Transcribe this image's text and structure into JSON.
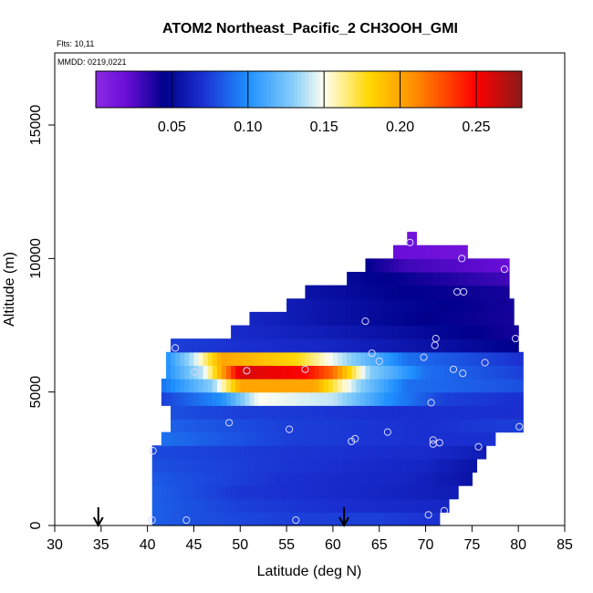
{
  "chart_data": {
    "type": "heatmap",
    "title": "ATOM2 Northeast_Pacific_2 CH3OOH_GMI",
    "subtitle_lines": [
      "Flts: 10,11",
      "MMDD: 0219,0221"
    ],
    "xlabel": "Latitude (deg N)",
    "ylabel": "Altitude (m)",
    "xlim": [
      30,
      85
    ],
    "ylim": [
      0,
      17500
    ],
    "x_ticks": [
      30,
      35,
      40,
      45,
      50,
      55,
      60,
      65,
      70,
      75,
      80,
      85
    ],
    "y_ticks": [
      0,
      5000,
      10000,
      15000
    ],
    "colorbar": {
      "range": [
        0.0,
        0.28
      ],
      "ticks": [
        0.05,
        0.1,
        0.15,
        0.2,
        0.25
      ],
      "tick_labels": [
        "0.05",
        "0.10",
        "0.15",
        "0.20",
        "0.25"
      ],
      "placement": "top-inside"
    },
    "colormap": [
      [
        0.0,
        "#8a2be2"
      ],
      [
        0.02,
        "#6a0dd8"
      ],
      [
        0.045,
        "#00008b"
      ],
      [
        0.07,
        "#1a2fd0"
      ],
      [
        0.1,
        "#1e90ff"
      ],
      [
        0.13,
        "#87cefa"
      ],
      [
        0.15,
        "#fffff0"
      ],
      [
        0.18,
        "#ffd700"
      ],
      [
        0.21,
        "#ff8c00"
      ],
      [
        0.25,
        "#ff0000"
      ],
      [
        0.28,
        "#8b1a1a"
      ]
    ],
    "field_rows": [
      {
        "alt": [
          0,
          500
        ],
        "lat": [
          40.5,
          71.5
        ],
        "vals": [
          [
            40.5,
            0.085
          ],
          [
            45,
            0.08
          ],
          [
            55,
            0.075
          ],
          [
            65,
            0.075
          ],
          [
            71.5,
            0.07
          ]
        ]
      },
      {
        "alt": [
          500,
          1000
        ],
        "lat": [
          40.5,
          72.5
        ],
        "vals": [
          [
            40.5,
            0.085
          ],
          [
            50,
            0.075
          ],
          [
            60,
            0.07
          ],
          [
            72.5,
            0.065
          ]
        ]
      },
      {
        "alt": [
          1000,
          1500
        ],
        "lat": [
          40.5,
          73.5
        ],
        "vals": [
          [
            40.5,
            0.085
          ],
          [
            50,
            0.072
          ],
          [
            60,
            0.068
          ],
          [
            73.5,
            0.06
          ]
        ]
      },
      {
        "alt": [
          1500,
          2000
        ],
        "lat": [
          40.5,
          75.0
        ],
        "vals": [
          [
            40.5,
            0.083
          ],
          [
            55,
            0.07
          ],
          [
            68,
            0.065
          ],
          [
            75,
            0.055
          ]
        ]
      },
      {
        "alt": [
          2000,
          2500
        ],
        "lat": [
          40.5,
          75.5
        ],
        "vals": [
          [
            40.5,
            0.08
          ],
          [
            55,
            0.072
          ],
          [
            70,
            0.065
          ],
          [
            75.5,
            0.055
          ]
        ]
      },
      {
        "alt": [
          2500,
          3000
        ],
        "lat": [
          40.5,
          76.5
        ],
        "vals": [
          [
            40.5,
            0.078
          ],
          [
            55,
            0.072
          ],
          [
            70,
            0.068
          ],
          [
            76.5,
            0.06
          ]
        ]
      },
      {
        "alt": [
          3000,
          3500
        ],
        "lat": [
          41.5,
          77.5
        ],
        "vals": [
          [
            41.5,
            0.09
          ],
          [
            55,
            0.075
          ],
          [
            70,
            0.07
          ],
          [
            77.5,
            0.07
          ]
        ]
      },
      {
        "alt": [
          3500,
          4000
        ],
        "lat": [
          42.5,
          80.5
        ],
        "vals": [
          [
            42.5,
            0.085
          ],
          [
            55,
            0.075
          ],
          [
            70,
            0.07
          ],
          [
            80.5,
            0.075
          ]
        ]
      },
      {
        "alt": [
          4000,
          4500
        ],
        "lat": [
          42.5,
          80.5
        ],
        "vals": [
          [
            42.5,
            0.08
          ],
          [
            50,
            0.075
          ],
          [
            65,
            0.07
          ],
          [
            80.5,
            0.07
          ]
        ]
      },
      {
        "alt": [
          4500,
          5000
        ],
        "lat": [
          41.5,
          80.5
        ],
        "vals": [
          [
            41.5,
            0.075
          ],
          [
            48,
            0.1
          ],
          [
            52,
            0.15
          ],
          [
            60,
            0.14
          ],
          [
            66,
            0.1
          ],
          [
            72,
            0.075
          ],
          [
            80.5,
            0.07
          ]
        ]
      },
      {
        "alt": [
          5000,
          5500
        ],
        "lat": [
          41.5,
          80.5
        ],
        "vals": [
          [
            41.5,
            0.09
          ],
          [
            47,
            0.13
          ],
          [
            50,
            0.2
          ],
          [
            58,
            0.2
          ],
          [
            63,
            0.13
          ],
          [
            68,
            0.09
          ],
          [
            80.5,
            0.08
          ]
        ]
      },
      {
        "alt": [
          5500,
          6000
        ],
        "lat": [
          42.0,
          80.5
        ],
        "vals": [
          [
            42,
            0.1
          ],
          [
            46,
            0.14
          ],
          [
            50,
            0.26
          ],
          [
            57,
            0.25
          ],
          [
            60,
            0.22
          ],
          [
            64,
            0.13
          ],
          [
            70,
            0.09
          ],
          [
            80.5,
            0.075
          ]
        ]
      },
      {
        "alt": [
          6000,
          6500
        ],
        "lat": [
          42.0,
          80.5
        ],
        "vals": [
          [
            42,
            0.1
          ],
          [
            45,
            0.14
          ],
          [
            48,
            0.2
          ],
          [
            56,
            0.18
          ],
          [
            62,
            0.13
          ],
          [
            68,
            0.09
          ],
          [
            80.5,
            0.07
          ]
        ]
      },
      {
        "alt": [
          6500,
          7000
        ],
        "lat": [
          42.5,
          80.0
        ],
        "vals": [
          [
            42.5,
            0.075
          ],
          [
            50,
            0.07
          ],
          [
            60,
            0.065
          ],
          [
            70,
            0.055
          ],
          [
            80,
            0.045
          ]
        ]
      },
      {
        "alt": [
          7000,
          7500
        ],
        "lat": [
          49.0,
          80.0
        ],
        "vals": [
          [
            49,
            0.068
          ],
          [
            60,
            0.06
          ],
          [
            70,
            0.05
          ],
          [
            80,
            0.04
          ]
        ]
      },
      {
        "alt": [
          7500,
          8000
        ],
        "lat": [
          51.0,
          79.5
        ],
        "vals": [
          [
            51,
            0.065
          ],
          [
            60,
            0.055
          ],
          [
            70,
            0.045
          ],
          [
            79.5,
            0.04
          ]
        ]
      },
      {
        "alt": [
          8000,
          8500
        ],
        "lat": [
          55.0,
          79.5
        ],
        "vals": [
          [
            55,
            0.06
          ],
          [
            65,
            0.05
          ],
          [
            79.5,
            0.04
          ]
        ]
      },
      {
        "alt": [
          8500,
          9000
        ],
        "lat": [
          57.0,
          79.0
        ],
        "vals": [
          [
            57,
            0.055
          ],
          [
            68,
            0.045
          ],
          [
            79,
            0.04
          ]
        ]
      },
      {
        "alt": [
          9000,
          9500
        ],
        "lat": [
          61.5,
          79.0
        ],
        "vals": [
          [
            61.5,
            0.05
          ],
          [
            70,
            0.04
          ],
          [
            79,
            0.03
          ]
        ]
      },
      {
        "alt": [
          9500,
          10000
        ],
        "lat": [
          63.5,
          79.0
        ],
        "vals": [
          [
            63.5,
            0.045
          ],
          [
            68,
            0.03
          ],
          [
            79,
            0.02
          ]
        ]
      },
      {
        "alt": [
          10000,
          10500
        ],
        "lat": [
          66.5,
          74.5
        ],
        "vals": [
          [
            66.5,
            0.02
          ],
          [
            74.5,
            0.015
          ]
        ]
      },
      {
        "alt": [
          10500,
          11000
        ],
        "lat": [
          68.0,
          69.0
        ],
        "vals": [
          [
            68,
            0.015
          ],
          [
            69,
            0.015
          ]
        ]
      }
    ],
    "flight_points": [
      [
        40.5,
        200
      ],
      [
        44.2,
        200
      ],
      [
        56.0,
        200
      ],
      [
        70.3,
        400
      ],
      [
        72.0,
        550
      ],
      [
        40.6,
        2800
      ],
      [
        48.8,
        3850
      ],
      [
        55.3,
        3600
      ],
      [
        62.0,
        3150
      ],
      [
        62.4,
        3250
      ],
      [
        65.9,
        3500
      ],
      [
        70.8,
        3200
      ],
      [
        70.8,
        3050
      ],
      [
        71.5,
        3100
      ],
      [
        75.7,
        2950
      ],
      [
        80.1,
        3700
      ],
      [
        70.6,
        4600
      ],
      [
        45.1,
        5750
      ],
      [
        50.7,
        5800
      ],
      [
        57.0,
        5850
      ],
      [
        73.0,
        5850
      ],
      [
        74.0,
        5700
      ],
      [
        76.4,
        6100
      ],
      [
        65.0,
        6150
      ],
      [
        69.8,
        6300
      ],
      [
        43.0,
        6650
      ],
      [
        64.2,
        6450
      ],
      [
        71.0,
        6750
      ],
      [
        71.1,
        7000
      ],
      [
        79.7,
        7000
      ],
      [
        63.5,
        7650
      ],
      [
        73.4,
        8750
      ],
      [
        74.1,
        8750
      ],
      [
        78.5,
        9600
      ],
      [
        73.9,
        10000
      ],
      [
        68.3,
        10600
      ]
    ],
    "arrows_lat": [
      34.7,
      61.2
    ]
  }
}
